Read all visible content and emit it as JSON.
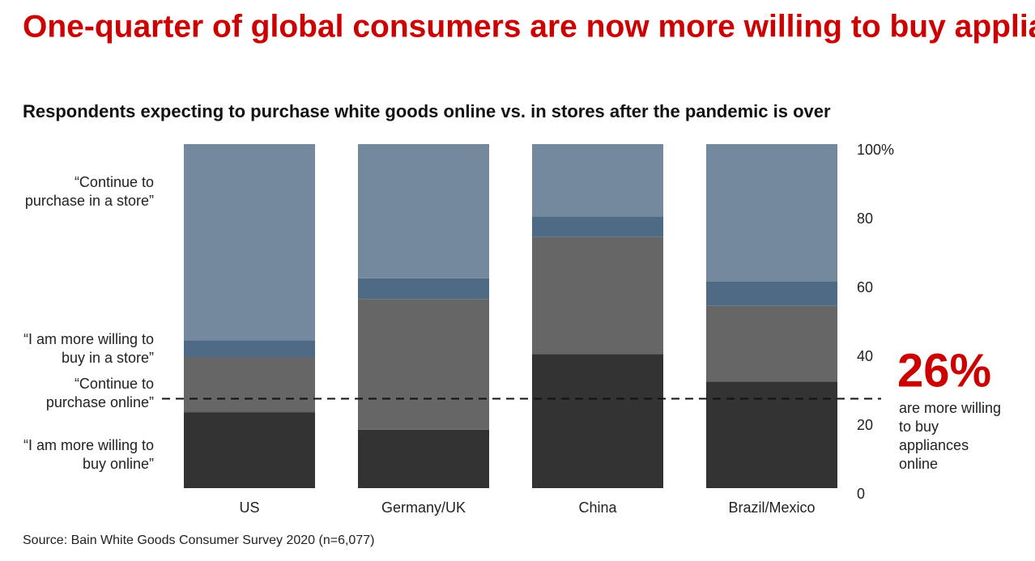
{
  "chart_data": {
    "type": "stacked_bar",
    "title": "One-quarter of global consumers are now more willing to buy appliances online",
    "subtitle": "Respondents expecting to purchase white goods online vs. in stores after the pandemic is over",
    "source": "Source: Bain White Goods Consumer Survey 2020 (n=6,077)",
    "categories": [
      "US",
      "Germany/UK",
      "China",
      "Brazil/Mexico"
    ],
    "series": [
      {
        "name": "“I am more willing to buy online”",
        "color": "#333333",
        "values": [
          22,
          17,
          39,
          31
        ]
      },
      {
        "name": "“Continue to purchase online”",
        "color": "#666666",
        "values": [
          16,
          38,
          34,
          22
        ]
      },
      {
        "name": "“I am more willing to buy in a store”",
        "color": "#4f6a84",
        "values": [
          5,
          6,
          6,
          7
        ]
      },
      {
        "name": "“Continue to purchase in a store”",
        "color": "#74899e",
        "values": [
          57,
          39,
          21,
          40
        ]
      }
    ],
    "ylim": [
      0,
      100
    ],
    "yticks": [
      0,
      20,
      40,
      60,
      80,
      {
        "value": 100,
        "label": "100%"
      }
    ],
    "reference_line": {
      "value": 26,
      "label": "26%",
      "text": "are more willing to buy appliances online",
      "color": "#cc0000"
    }
  }
}
